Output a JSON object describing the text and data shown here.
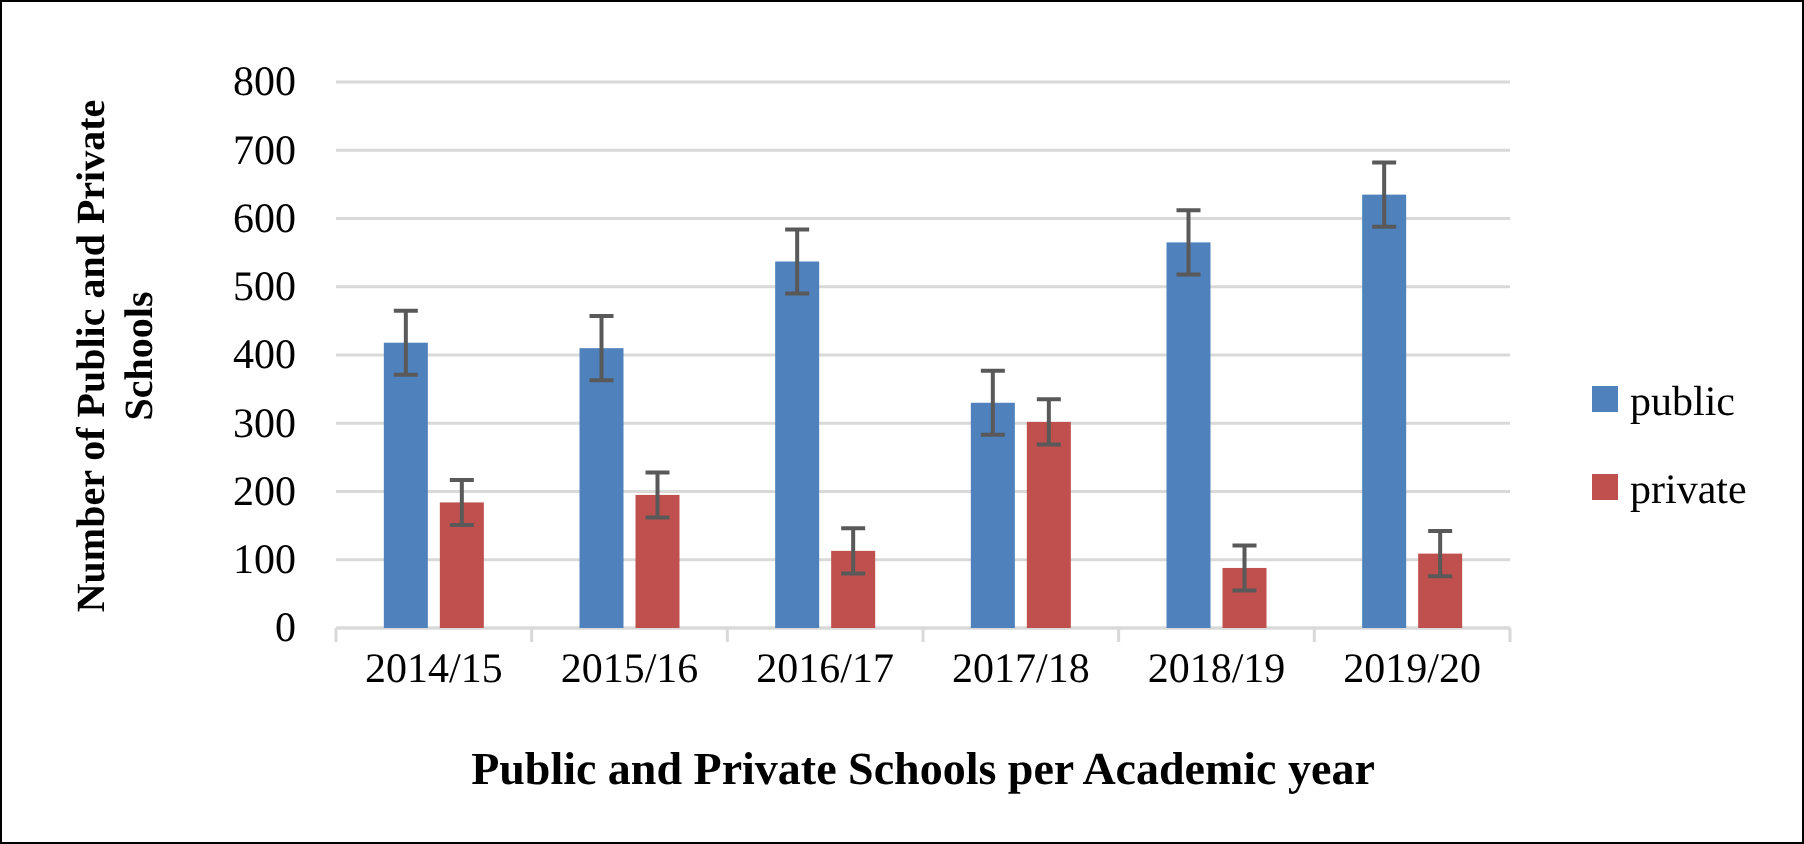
{
  "chart_data": {
    "type": "bar",
    "xlabel": "Public and Private Schools per Academic year",
    "ylabel": "Number of Public and Private Schools",
    "categories": [
      "2014/15",
      "2015/16",
      "2016/17",
      "2017/18",
      "2018/19",
      "2019/20"
    ],
    "series": [
      {
        "name": "public",
        "color": "#4f81bd",
        "values": [
          418,
          410,
          537,
          330,
          565,
          635
        ],
        "errors": [
          47,
          47,
          47,
          47,
          47,
          47
        ]
      },
      {
        "name": "private",
        "color": "#c0504d",
        "values": [
          184,
          195,
          113,
          302,
          88,
          109
        ],
        "errors": [
          33,
          33,
          33,
          33,
          33,
          33
        ]
      }
    ],
    "ylim": [
      0,
      800
    ],
    "yticks": [
      0,
      100,
      200,
      300,
      400,
      500,
      600,
      700,
      800
    ],
    "grid": "y",
    "legend": "right"
  }
}
